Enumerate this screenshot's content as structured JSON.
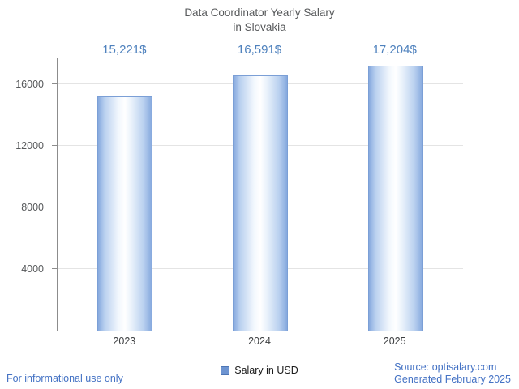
{
  "chart_data": {
    "type": "bar",
    "title_line1": "Data Coordinator Yearly Salary",
    "title_line2": "in Slovakia",
    "categories": [
      "2023",
      "2024",
      "2025"
    ],
    "values": [
      15221,
      16591,
      17204
    ],
    "value_labels": [
      "15,221$",
      "16,591$",
      "17,204$"
    ],
    "series_name": "Salary in USD",
    "yticks": [
      4000,
      8000,
      12000,
      16000
    ],
    "ylim": [
      0,
      17700
    ],
    "grid": true,
    "legend_position": "bottom-center",
    "colors": {
      "bar_edge": "#86a9de",
      "bar_center": "#ffffff",
      "bar_border": "#7b9fd6",
      "value_label": "#4e81bd",
      "footer_text": "#4472c4",
      "title_text": "#57595b",
      "axis_line": "#8c8c8c",
      "gridline": "#e4e4e4"
    }
  },
  "footer": {
    "left": "For informational use only",
    "right_line1": "Source: optisalary.com",
    "right_line2": "Generated February 2025"
  }
}
